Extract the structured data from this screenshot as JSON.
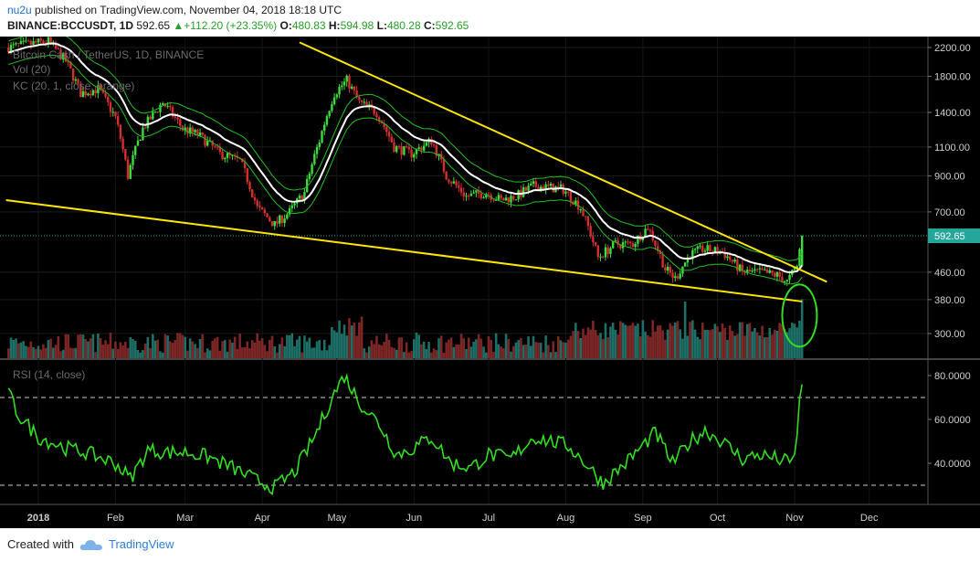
{
  "header": {
    "user": "nu2u",
    "published_text": "published on TradingView.com, November 04, 2018 18:18 UTC",
    "symbol": "BINANCE:BCCUSDT, 1D",
    "last": "592.65",
    "change": "+112.20 (+23.35%)",
    "o_label": "O:",
    "o": "480.83",
    "h_label": "H:",
    "h": "594.98",
    "l_label": "L:",
    "l": "480.28",
    "c_label": "C:",
    "c": "592.65"
  },
  "legend": {
    "title": "Bitcoin Cash / TetherUS, 1D, BINANCE",
    "vol": "Vol (20)",
    "kc": "KC (20, 1, close, orange)",
    "rsi": "RSI (14, close)"
  },
  "footer": {
    "created_with": "Created with",
    "brand": "TradingView"
  },
  "colors": {
    "up": "#26a69a",
    "down": "#d32f2f",
    "rsi": "#33dd22",
    "kc": "#22c022",
    "basis": "#ffffff",
    "trend": "#ffe600",
    "bg": "#000000",
    "circle": "#33dd22"
  },
  "chart_data": {
    "type": "candlestick",
    "price_axis": {
      "scale": "log",
      "ticks": [
        300,
        380,
        460,
        592.65,
        700,
        900,
        1100,
        1400,
        1800,
        2200
      ],
      "tick_labels": [
        "300.00",
        "380.00",
        "460.00",
        "592.65",
        "700.00",
        "900.00",
        "1100.00",
        "1400.00",
        "1800.00",
        "2200.00"
      ],
      "last_label": "592.65"
    },
    "rsi_axis": {
      "ticks": [
        40,
        60,
        80
      ],
      "tick_labels": [
        "40.0000",
        "60.0000",
        "80.0000"
      ],
      "levels": [
        30,
        70
      ]
    },
    "x_labels": [
      "2018",
      "Feb",
      "Mar",
      "Apr",
      "May",
      "Jun",
      "Jul",
      "Aug",
      "Sep",
      "Oct",
      "Nov",
      "Dec"
    ],
    "close_path": [
      [
        "2017-12-20",
        2200
      ],
      [
        "2018-01-05",
        2300
      ],
      [
        "2018-01-12",
        2000
      ],
      [
        "2018-01-18",
        1600
      ],
      [
        "2018-01-25",
        1650
      ],
      [
        "2018-02-01",
        1350
      ],
      [
        "2018-02-06",
        900
      ],
      [
        "2018-02-12",
        1250
      ],
      [
        "2018-02-20",
        1500
      ],
      [
        "2018-02-28",
        1250
      ],
      [
        "2018-03-06",
        1200
      ],
      [
        "2018-03-15",
        1050
      ],
      [
        "2018-03-23",
        1000
      ],
      [
        "2018-03-30",
        720
      ],
      [
        "2018-04-06",
        640
      ],
      [
        "2018-04-12",
        700
      ],
      [
        "2018-04-18",
        800
      ],
      [
        "2018-04-24",
        1150
      ],
      [
        "2018-04-30",
        1600
      ],
      [
        "2018-05-05",
        1750
      ],
      [
        "2018-05-10",
        1500
      ],
      [
        "2018-05-17",
        1400
      ],
      [
        "2018-05-24",
        1100
      ],
      [
        "2018-05-31",
        1050
      ],
      [
        "2018-06-08",
        1150
      ],
      [
        "2018-06-14",
        900
      ],
      [
        "2018-06-22",
        780
      ],
      [
        "2018-06-30",
        800
      ],
      [
        "2018-07-06",
        760
      ],
      [
        "2018-07-12",
        780
      ],
      [
        "2018-07-19",
        840
      ],
      [
        "2018-07-25",
        830
      ],
      [
        "2018-07-31",
        820
      ],
      [
        "2018-08-07",
        720
      ],
      [
        "2018-08-14",
        510
      ],
      [
        "2018-08-21",
        560
      ],
      [
        "2018-08-28",
        560
      ],
      [
        "2018-09-03",
        630
      ],
      [
        "2018-09-10",
        470
      ],
      [
        "2018-09-14",
        440
      ],
      [
        "2018-09-20",
        520
      ],
      [
        "2018-09-25",
        540
      ],
      [
        "2018-10-03",
        530
      ],
      [
        "2018-10-11",
        460
      ],
      [
        "2018-10-18",
        460
      ],
      [
        "2018-10-25",
        450
      ],
      [
        "2018-10-29",
        430
      ],
      [
        "2018-11-02",
        480
      ],
      [
        "2018-11-04",
        592.65
      ]
    ],
    "rsi_path": [
      [
        "2017-12-20",
        72
      ],
      [
        "2017-12-24",
        62
      ],
      [
        "2018-01-01",
        52
      ],
      [
        "2018-01-12",
        47
      ],
      [
        "2018-01-20",
        45
      ],
      [
        "2018-02-01",
        40
      ],
      [
        "2018-02-07",
        33
      ],
      [
        "2018-02-14",
        46
      ],
      [
        "2018-02-22",
        45
      ],
      [
        "2018-03-02",
        45
      ],
      [
        "2018-03-10",
        43
      ],
      [
        "2018-03-20",
        38
      ],
      [
        "2018-03-30",
        32
      ],
      [
        "2018-04-06",
        29
      ],
      [
        "2018-04-14",
        36
      ],
      [
        "2018-04-22",
        52
      ],
      [
        "2018-04-29",
        70
      ],
      [
        "2018-05-04",
        80
      ],
      [
        "2018-05-10",
        68
      ],
      [
        "2018-05-18",
        58
      ],
      [
        "2018-05-25",
        44
      ],
      [
        "2018-06-01",
        47
      ],
      [
        "2018-06-08",
        52
      ],
      [
        "2018-06-16",
        40
      ],
      [
        "2018-06-24",
        38
      ],
      [
        "2018-07-01",
        44
      ],
      [
        "2018-07-10",
        42
      ],
      [
        "2018-07-19",
        52
      ],
      [
        "2018-07-26",
        50
      ],
      [
        "2018-08-02",
        48
      ],
      [
        "2018-08-09",
        40
      ],
      [
        "2018-08-16",
        31
      ],
      [
        "2018-08-25",
        40
      ],
      [
        "2018-09-01",
        48
      ],
      [
        "2018-09-06",
        54
      ],
      [
        "2018-09-13",
        40
      ],
      [
        "2018-09-20",
        50
      ],
      [
        "2018-09-26",
        55
      ],
      [
        "2018-10-03",
        50
      ],
      [
        "2018-10-11",
        42
      ],
      [
        "2018-10-18",
        44
      ],
      [
        "2018-10-25",
        42
      ],
      [
        "2018-10-31",
        40
      ],
      [
        "2018-11-02",
        52
      ],
      [
        "2018-11-03",
        67
      ],
      [
        "2018-11-04",
        76
      ]
    ],
    "upper_trendline": [
      [
        "2018-04-16",
        2280
      ],
      [
        "2018-11-14",
        430
      ]
    ],
    "lower_trendline": [
      [
        "2017-12-19",
        760
      ],
      [
        "2018-11-04",
        375
      ]
    ],
    "highlight_circle": {
      "x": "2018-11-03",
      "price": 340
    }
  }
}
